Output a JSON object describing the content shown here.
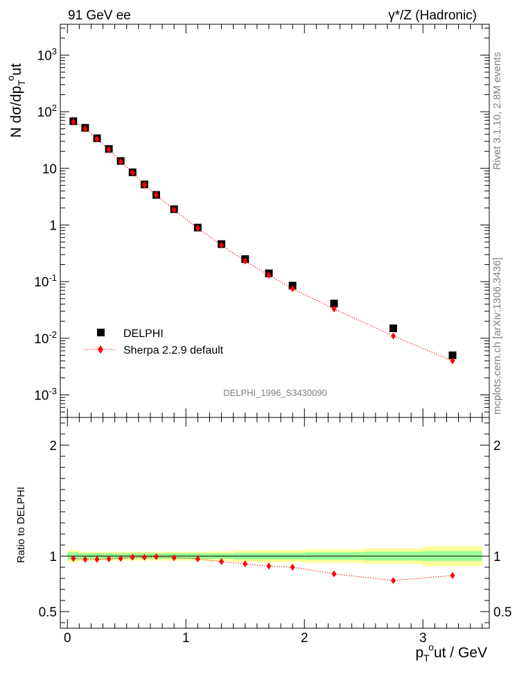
{
  "header": {
    "left": "91 GeV ee",
    "right": "γ*/Z (Hadronic)"
  },
  "side_labels": {
    "rivet": "Rivet 3.1.10, 2.8M events",
    "mcplots": "mcplots.cern.ch [arXiv:1306.3436]"
  },
  "watermark": "DELPHI_1996_S3430090",
  "chart_data": [
    {
      "type": "scatter",
      "panel": "main",
      "ylabel": "N dσ/dp_T^out",
      "yscale": "log",
      "ylim": [
        0.0004,
        3500
      ],
      "xlim": [
        -0.06,
        3.56
      ],
      "ytick_labels": [
        "10^-3",
        "10^-2",
        "10^-1",
        "1",
        "10",
        "10^2",
        "10^3"
      ],
      "legend_position": "center-left",
      "series": [
        {
          "name": "DELPHI",
          "color": "#000000",
          "marker": "square",
          "x": [
            0.05,
            0.15,
            0.25,
            0.35,
            0.45,
            0.55,
            0.65,
            0.75,
            0.9,
            1.1,
            1.3,
            1.5,
            1.7,
            1.9,
            2.25,
            2.75,
            3.25
          ],
          "y": [
            68,
            52,
            34,
            22,
            13.5,
            8.5,
            5.2,
            3.4,
            1.9,
            0.9,
            0.46,
            0.25,
            0.14,
            0.085,
            0.041,
            0.015,
            0.005
          ]
        },
        {
          "name": "Sherpa 2.2.9 default",
          "color": "#ff0000",
          "marker": "diamond",
          "line": "dotted",
          "x": [
            0.05,
            0.15,
            0.25,
            0.35,
            0.45,
            0.55,
            0.65,
            0.75,
            0.9,
            1.1,
            1.3,
            1.5,
            1.7,
            1.9,
            2.25,
            2.75,
            3.25
          ],
          "y": [
            66,
            50,
            33,
            21.5,
            13.2,
            8.4,
            5.1,
            3.4,
            1.85,
            0.88,
            0.44,
            0.23,
            0.13,
            0.075,
            0.033,
            0.011,
            0.004
          ]
        }
      ]
    },
    {
      "type": "scatter",
      "panel": "ratio",
      "ylabel": "Ratio to DELPHI",
      "xlabel": "p_T^out / GeV",
      "ylim": [
        0.35,
        2.25
      ],
      "xlim": [
        -0.06,
        3.56
      ],
      "yticks": [
        0.5,
        1,
        2
      ],
      "ytick_labels": [
        "0.5",
        "1",
        "2"
      ],
      "xticks": [
        0,
        1,
        2,
        3
      ],
      "xtick_labels": [
        "0",
        "1",
        "2",
        "3"
      ],
      "bands": {
        "bin_edges": [
          0.0,
          0.1,
          0.2,
          0.3,
          0.4,
          0.5,
          0.6,
          0.7,
          0.8,
          1.0,
          1.2,
          1.4,
          1.6,
          1.8,
          2.0,
          2.5,
          3.0,
          3.5
        ],
        "stat_halfwidth": [
          0.035,
          0.025,
          0.025,
          0.025,
          0.025,
          0.025,
          0.025,
          0.025,
          0.025,
          0.025,
          0.025,
          0.03,
          0.03,
          0.03,
          0.035,
          0.04,
          0.045
        ],
        "total_halfwidth": [
          0.055,
          0.04,
          0.04,
          0.04,
          0.04,
          0.04,
          0.04,
          0.04,
          0.04,
          0.04,
          0.045,
          0.05,
          0.055,
          0.055,
          0.06,
          0.07,
          0.09
        ],
        "stat_color": "#99ff99",
        "total_color": "#ffff99"
      },
      "series": [
        {
          "name": "Sherpa 2.2.9 default",
          "color": "#ff0000",
          "marker": "diamond",
          "line": "dotted",
          "x": [
            0.05,
            0.15,
            0.25,
            0.35,
            0.45,
            0.55,
            0.65,
            0.75,
            0.9,
            1.1,
            1.3,
            1.5,
            1.7,
            1.9,
            2.25,
            2.75,
            3.25
          ],
          "y": [
            0.98,
            0.97,
            0.97,
            0.975,
            0.98,
            0.99,
            0.99,
            0.995,
            0.985,
            0.975,
            0.95,
            0.93,
            0.91,
            0.9,
            0.84,
            0.78,
            0.825
          ]
        }
      ]
    }
  ]
}
